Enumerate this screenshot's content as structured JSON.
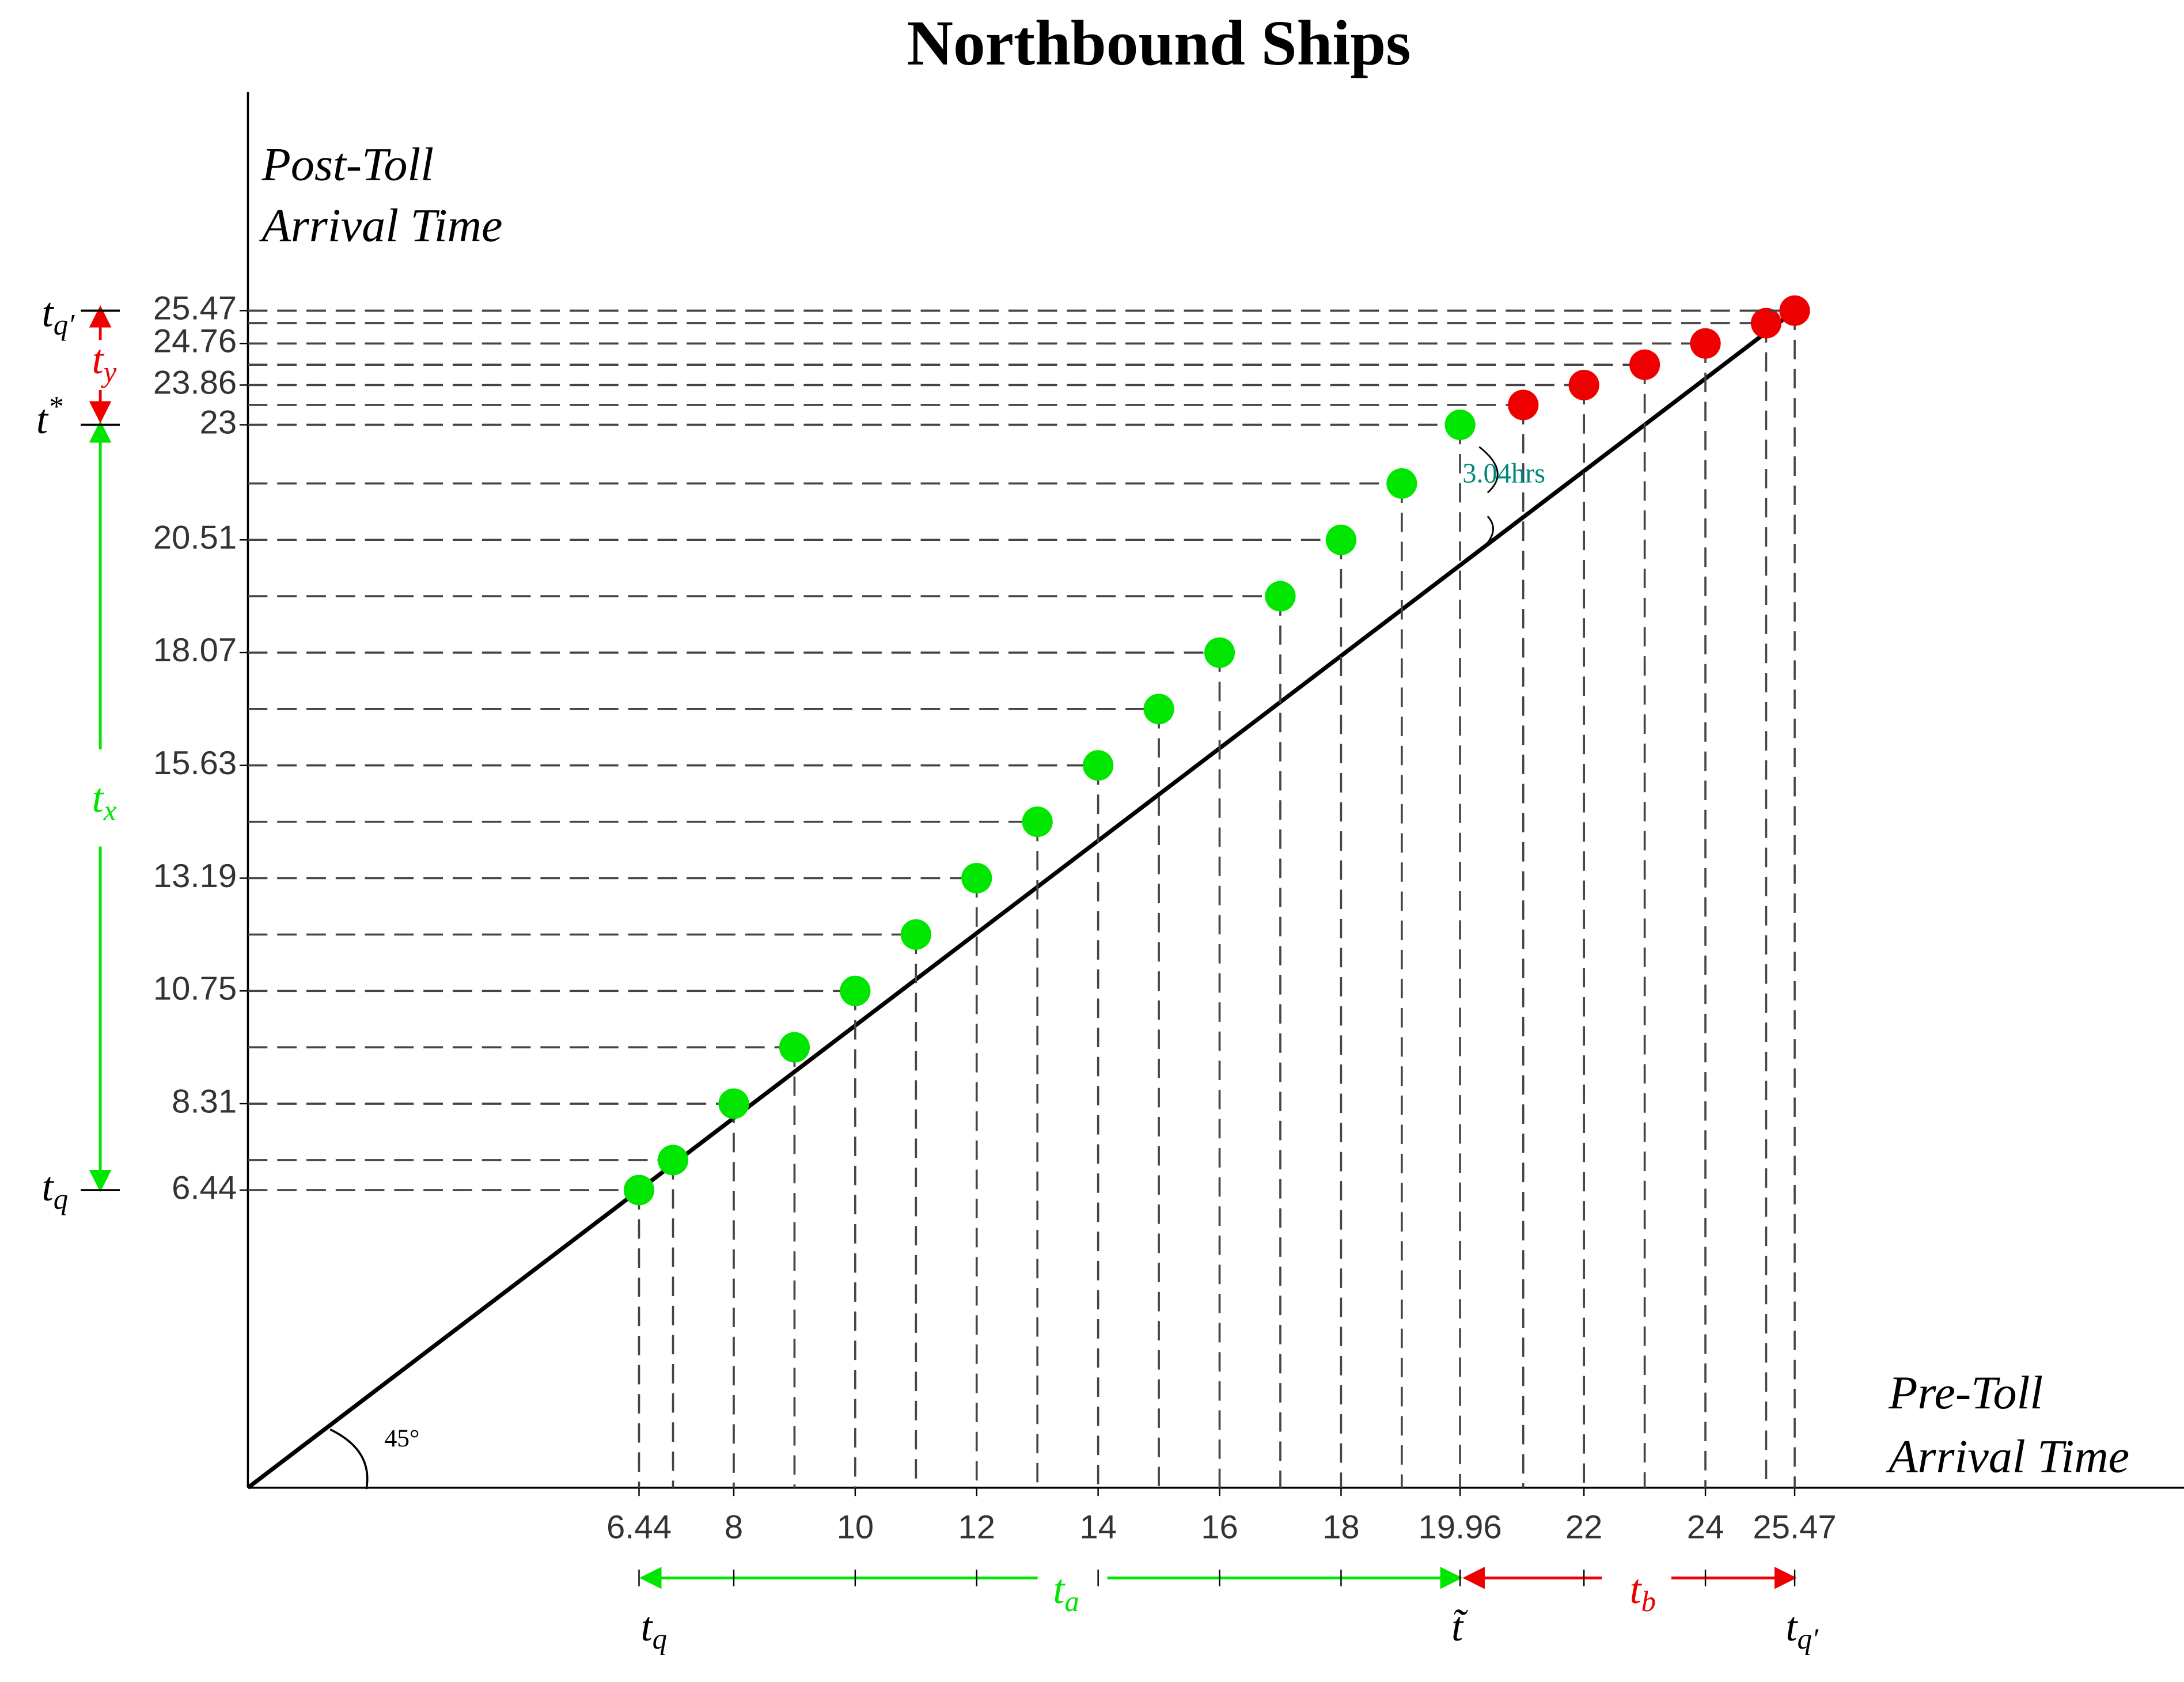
{
  "chart_data": {
    "type": "scatter",
    "title": "Northbound Ships",
    "y_label": [
      "Post-Toll",
      "Arrival Time"
    ],
    "x_label": [
      "Pre-Toll",
      "Arrival Time"
    ],
    "xlim": [
      0,
      31.9
    ],
    "ylim": [
      0,
      30.2
    ],
    "xticks": [
      6.44,
      8,
      10,
      12,
      14,
      16,
      18,
      19.96,
      22,
      24,
      25.47
    ],
    "yticks": [
      6.44,
      8.31,
      10.75,
      13.19,
      15.63,
      18.07,
      20.51,
      23,
      23.86,
      24.76,
      25.47
    ],
    "diagonal": {
      "x": [
        0,
        25.3
      ],
      "y": [
        0,
        25.3
      ]
    },
    "series": [
      {
        "color": "#00e600",
        "x": [
          6.44,
          7,
          8,
          9,
          10,
          11,
          12,
          13,
          14,
          15,
          16,
          17,
          18,
          19,
          19.96
        ],
        "values": [
          6.44,
          7.09,
          8.31,
          9.53,
          10.75,
          11.97,
          13.19,
          14.41,
          15.63,
          16.85,
          18.07,
          19.29,
          20.51,
          21.73,
          23
        ]
      },
      {
        "color": "#ee0000",
        "x": [
          21,
          22,
          23,
          24,
          25,
          25.47
        ],
        "values": [
          23.43,
          23.86,
          24.3,
          24.76,
          25.2,
          25.47
        ]
      }
    ],
    "annotations": [
      {
        "text": "45°"
      },
      {
        "text": "3.04hrs"
      },
      {
        "text": "t",
        "sub": "q′"
      },
      {
        "text": "t",
        "sub": "y"
      },
      {
        "text": "t",
        "sup": "*"
      },
      {
        "text": "t",
        "sub": "x"
      },
      {
        "text": "t",
        "sub": "q"
      },
      {
        "text": "t",
        "sub": "q"
      },
      {
        "text": "t",
        "sub": "a"
      },
      {
        "text": "t̃"
      },
      {
        "text": "t",
        "sub": "b"
      },
      {
        "text": "t",
        "sub": "q′"
      }
    ]
  }
}
